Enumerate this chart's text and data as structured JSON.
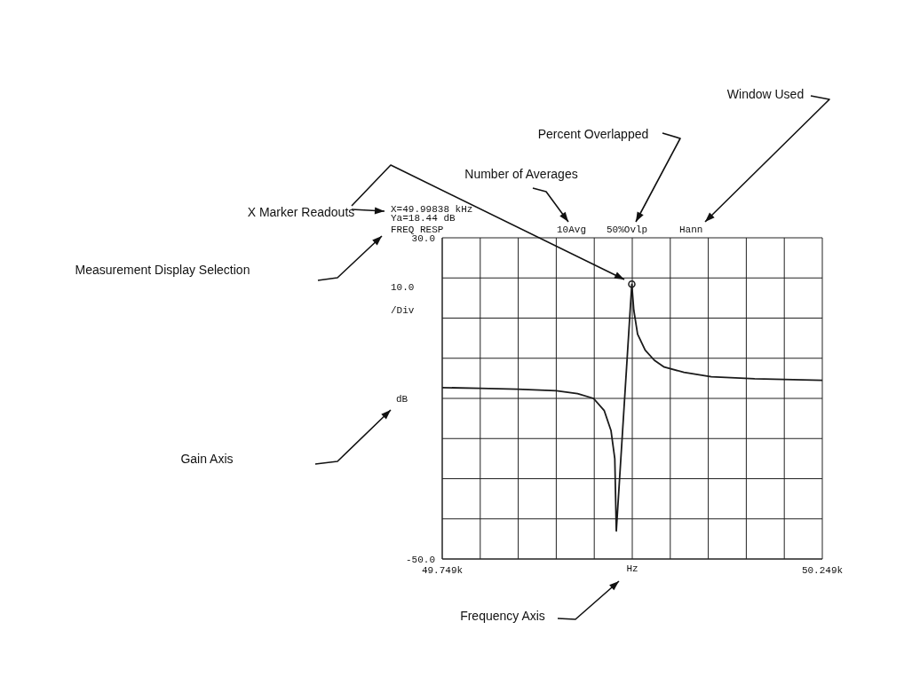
{
  "chart_data": {
    "type": "line",
    "xlabel": "Hz",
    "ylabel": "dB",
    "xlim": [
      49749,
      50249
    ],
    "xticks": [
      {
        "value": 49749,
        "label": "49.749k"
      },
      {
        "value": 49799,
        "label": null
      },
      {
        "value": 49849,
        "label": null
      },
      {
        "value": 49899,
        "label": null
      },
      {
        "value": 49949,
        "label": null
      },
      {
        "value": 49999,
        "label": null
      },
      {
        "value": 50049,
        "label": null
      },
      {
        "value": 50099,
        "label": null
      },
      {
        "value": 50149,
        "label": null
      },
      {
        "value": 50199,
        "label": null
      },
      {
        "value": 50249,
        "label": "50.249k"
      }
    ],
    "ylim": [
      -50,
      30
    ],
    "yticks": [
      {
        "value": 30,
        "label": "30.0"
      },
      {
        "value": 20,
        "label": null
      },
      {
        "value": 10,
        "label": null
      },
      {
        "value": 0,
        "label": null
      },
      {
        "value": -10,
        "label": null
      },
      {
        "value": -20,
        "label": null
      },
      {
        "value": -30,
        "label": null
      },
      {
        "value": -40,
        "label": null
      },
      {
        "value": -50,
        "label": "-50.0"
      }
    ],
    "grid": true,
    "series": [
      {
        "color": "#1a1a1a",
        "x": [
          49749,
          49798,
          49848,
          49899,
          49927,
          49948,
          49962,
          49971,
          49976,
          49978,
          49998.38,
          50001,
          50006,
          50016,
          50028,
          50041,
          50067,
          50103,
          50160,
          50249
        ],
        "values": [
          -7.3,
          -7.5,
          -7.7,
          -8.1,
          -8.8,
          -10,
          -13,
          -18,
          -25,
          -43,
          18.44,
          12,
          6,
          2,
          -0.5,
          -2.2,
          -3.5,
          -4.6,
          -5.1,
          -5.5
        ]
      },
      {
        "type": "scatter",
        "color": "#1a1a1a",
        "x": [
          49998.38
        ],
        "values": [
          18.44
        ]
      }
    ],
    "annotations": [
      "Window Used",
      "Percent Overlapped",
      "Number of Averages",
      "X Marker Readouts",
      "Measurement Display Selection",
      "Gain Axis",
      "Frequency Axis",
      "X=49.99838 kHz",
      "Ya=18.44 dB",
      "FREQ RESP",
      "10Avg",
      "50%Ovlp",
      "Hann",
      "10.0",
      "/Div"
    ]
  }
}
